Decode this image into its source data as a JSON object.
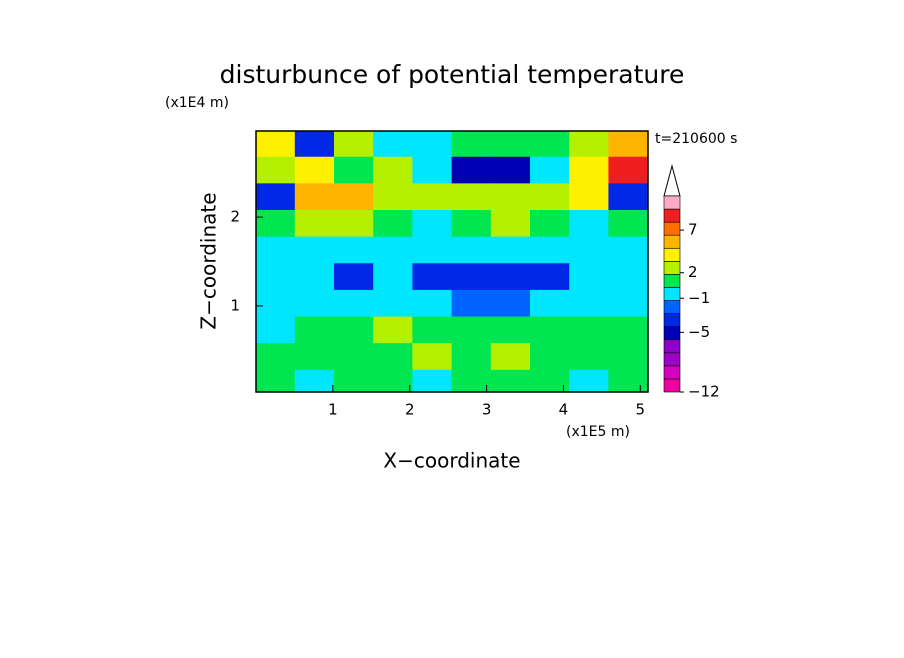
{
  "chart_data": {
    "type": "heatmap",
    "title": "disturbunce of potential temperature",
    "time_label": "t=210600 s",
    "x_label": "X−coordinate",
    "x_unit": "(x1E5 m)",
    "y_label": "Z−coordinate",
    "y_unit": "(x1E4 m)",
    "xlim": [
      0,
      5.1
    ],
    "ylim": [
      0.03,
      2.97
    ],
    "xticks": [
      1,
      2,
      3,
      4,
      5
    ],
    "yticks": [
      1,
      2
    ],
    "x": [
      0.25,
      0.76,
      1.27,
      1.78,
      2.29,
      2.8,
      3.31,
      3.82,
      4.33,
      4.84
    ],
    "y": [
      2.83,
      2.53,
      2.23,
      1.93,
      1.63,
      1.33,
      1.03,
      0.73,
      0.43,
      0.13
    ],
    "z": [
      [
        4,
        -3,
        2,
        0,
        -1,
        1,
        0.5,
        1.5,
        3,
        5
      ],
      [
        3,
        4,
        1,
        2,
        0,
        -5,
        -5,
        0,
        4,
        9
      ],
      [
        -4,
        5,
        5,
        2,
        2,
        3,
        3,
        2,
        4,
        -4
      ],
      [
        1,
        2,
        3,
        1,
        0,
        1,
        2,
        1,
        0,
        1
      ],
      [
        0,
        -0.5,
        0,
        0,
        -1,
        -1,
        -1,
        0,
        0,
        0
      ],
      [
        -1,
        -1,
        -3,
        -1,
        -4,
        -4,
        -4,
        -3,
        -1,
        -1
      ],
      [
        -1,
        -1,
        -1,
        -1,
        -1,
        -2,
        -2,
        -1,
        -1,
        -1
      ],
      [
        0,
        1.5,
        1.5,
        2,
        1.5,
        1.5,
        1.5,
        1.5,
        1,
        1.5
      ],
      [
        1.5,
        1.5,
        0.5,
        1.5,
        2,
        1.5,
        2,
        1.5,
        1.5,
        1.5
      ],
      [
        0.5,
        0,
        1,
        0.5,
        0,
        1,
        0.5,
        1,
        0,
        1
      ]
    ],
    "clim": [
      -12,
      11
    ],
    "colors": [
      "#f000a0",
      "#d800c0",
      "#a000c8",
      "#8c00c8",
      "#0000b4",
      "#0028e6",
      "#0064ff",
      "#00e6ff",
      "#00e650",
      "#b4f000",
      "#fff000",
      "#ffb400",
      "#ff6e00",
      "#f01e1e",
      "#ffaac8"
    ],
    "cticks": [
      {
        "value": -12,
        "label": "−12"
      },
      {
        "value": -5,
        "label": "−5"
      },
      {
        "value": -1,
        "label": "−1"
      },
      2,
      7
    ]
  }
}
